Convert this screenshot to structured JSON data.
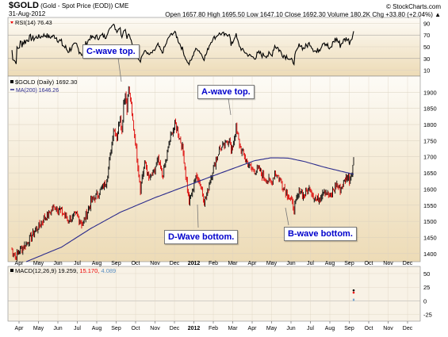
{
  "header": {
    "symbol": "$GOLD",
    "description": "(Gold - Spot Price (EOD))",
    "exchange": "CME",
    "date": "31-Aug-2012",
    "stats": "Open 1657.80  High 1695.50  Low 1647.10  Close 1692.30  Volume 180.2K  Chg +33.80 (+2.04%) ▲",
    "credit": "© StockCharts.com"
  },
  "chart_data": [
    {
      "type": "line",
      "title": "RSI(14) 76.43",
      "series": [
        {
          "name": "RSI(14)",
          "values": []
        }
      ],
      "ylim": [
        0,
        100
      ],
      "yticks": [
        10,
        30,
        50,
        70,
        90
      ],
      "upper_band": 70,
      "lower_band": 30
    },
    {
      "type": "candlestick",
      "title": "$GOLD (Daily) 1692.30",
      "ma_label": "MA(200) 1646.26",
      "ylim": [
        1375,
        1950
      ],
      "yticks": [
        1400,
        1450,
        1500,
        1550,
        1600,
        1650,
        1700,
        1750,
        1800,
        1850,
        1900
      ],
      "price_path": [
        [
          0,
          1415
        ],
        [
          5,
          1390
        ],
        [
          10,
          1410
        ],
        [
          18,
          1430
        ],
        [
          30,
          1475
        ],
        [
          40,
          1510
        ],
        [
          52,
          1545
        ],
        [
          60,
          1530
        ],
        [
          68,
          1505
        ],
        [
          78,
          1520
        ],
        [
          85,
          1490
        ],
        [
          95,
          1560
        ],
        [
          105,
          1590
        ],
        [
          113,
          1620
        ],
        [
          118,
          1700
        ],
        [
          122,
          1790
        ],
        [
          126,
          1760
        ],
        [
          130,
          1830
        ],
        [
          132,
          1775
        ],
        [
          134,
          1870
        ],
        [
          136,
          1895
        ],
        [
          138,
          1850
        ],
        [
          140,
          1910
        ],
        [
          142,
          1880
        ],
        [
          144,
          1830
        ],
        [
          147,
          1770
        ],
        [
          150,
          1700
        ],
        [
          152,
          1650
        ],
        [
          154,
          1600
        ],
        [
          156,
          1640
        ],
        [
          160,
          1680
        ],
        [
          164,
          1630
        ],
        [
          170,
          1650
        ],
        [
          175,
          1690
        ],
        [
          180,
          1640
        ],
        [
          184,
          1680
        ],
        [
          188,
          1740
        ],
        [
          192,
          1780
        ],
        [
          196,
          1800
        ],
        [
          200,
          1765
        ],
        [
          204,
          1730
        ],
        [
          206,
          1690
        ],
        [
          210,
          1600
        ],
        [
          212,
          1560
        ],
        [
          216,
          1590
        ],
        [
          218,
          1625
        ],
        [
          222,
          1640
        ],
        [
          226,
          1610
        ],
        [
          230,
          1560
        ],
        [
          233,
          1580
        ],
        [
          236,
          1620
        ],
        [
          240,
          1660
        ],
        [
          244,
          1690
        ],
        [
          248,
          1720
        ],
        [
          252,
          1730
        ],
        [
          256,
          1740
        ],
        [
          260,
          1760
        ],
        [
          262,
          1710
        ],
        [
          265,
          1745
        ],
        [
          268,
          1790
        ],
        [
          271,
          1750
        ],
        [
          274,
          1720
        ],
        [
          277,
          1705
        ],
        [
          280,
          1690
        ],
        [
          284,
          1670
        ],
        [
          288,
          1660
        ],
        [
          292,
          1655
        ],
        [
          296,
          1660
        ],
        [
          300,
          1640
        ],
        [
          305,
          1630
        ],
        [
          310,
          1620
        ],
        [
          314,
          1650
        ],
        [
          318,
          1640
        ],
        [
          322,
          1620
        ],
        [
          326,
          1600
        ],
        [
          330,
          1580
        ],
        [
          334,
          1560
        ],
        [
          337,
          1540
        ],
        [
          340,
          1565
        ],
        [
          344,
          1600
        ],
        [
          348,
          1580
        ],
        [
          352,
          1590
        ],
        [
          356,
          1605
        ],
        [
          360,
          1580
        ],
        [
          364,
          1565
        ],
        [
          368,
          1575
        ],
        [
          372,
          1600
        ],
        [
          376,
          1590
        ],
        [
          380,
          1570
        ],
        [
          384,
          1600
        ],
        [
          388,
          1615
        ],
        [
          392,
          1600
        ],
        [
          396,
          1620
        ],
        [
          400,
          1640
        ],
        [
          403,
          1630
        ],
        [
          406,
          1660
        ],
        [
          408,
          1692
        ]
      ],
      "ma200_path": [
        [
          18,
          1375
        ],
        [
          60,
          1420
        ],
        [
          95,
          1478
        ],
        [
          130,
          1528
        ],
        [
          170,
          1572
        ],
        [
          210,
          1611
        ],
        [
          250,
          1650
        ],
        [
          290,
          1688
        ],
        [
          310,
          1697
        ],
        [
          330,
          1696
        ],
        [
          350,
          1685
        ],
        [
          370,
          1670
        ],
        [
          390,
          1657
        ],
        [
          408,
          1646
        ]
      ]
    },
    {
      "type": "line",
      "title": "MACD(12,26,9) 19.259, 15.170, 4.089",
      "series": [
        {
          "name": "MACD",
          "values": [
            19.259
          ]
        },
        {
          "name": "Signal",
          "values": [
            15.17
          ]
        },
        {
          "name": "Histogram",
          "values": [
            4.089
          ]
        }
      ],
      "ylim": [
        -37,
        63
      ],
      "yticks": [
        -25,
        0,
        25,
        50
      ]
    }
  ],
  "rsi": {
    "name": "RSI(14)",
    "value": "76.43"
  },
  "price": {
    "label": "$GOLD (Daily) 1692.30",
    "ma_label": "MA(200) 1646.26"
  },
  "macd": {
    "name": "MACD(12,26,9)",
    "v1": "19.259,",
    "v2": "15.170,",
    "v3": "4.089"
  },
  "annotations": {
    "c_wave": "C-wave top.",
    "a_wave": "A-wave top.",
    "d_wave": "D-Wave bottom.",
    "b_wave": "B-wave bottom."
  },
  "x_axis": {
    "labels": [
      "Apr",
      "May",
      "Jun",
      "Jul",
      "Aug",
      "Sep",
      "Oct",
      "Nov",
      "Dec",
      "2012",
      "Feb",
      "Mar",
      "Apr",
      "May",
      "Jun",
      "Jul",
      "Aug",
      "Sep",
      "Oct",
      "Nov",
      "Dec"
    ]
  },
  "colors": {
    "panel_top": "#fdfbf6",
    "panel_bottom": "#eddbb6",
    "macd_bg": "#f8f2e6",
    "up_candle": "#000000",
    "down_candle": "#dd0000",
    "ma_line": "#2b2b8c",
    "rsi_line": "#000000",
    "macd_line": "#000000",
    "signal_line": "#ee0000",
    "histogram": "#7aa8d0",
    "annotation_text": "#0000cc"
  }
}
